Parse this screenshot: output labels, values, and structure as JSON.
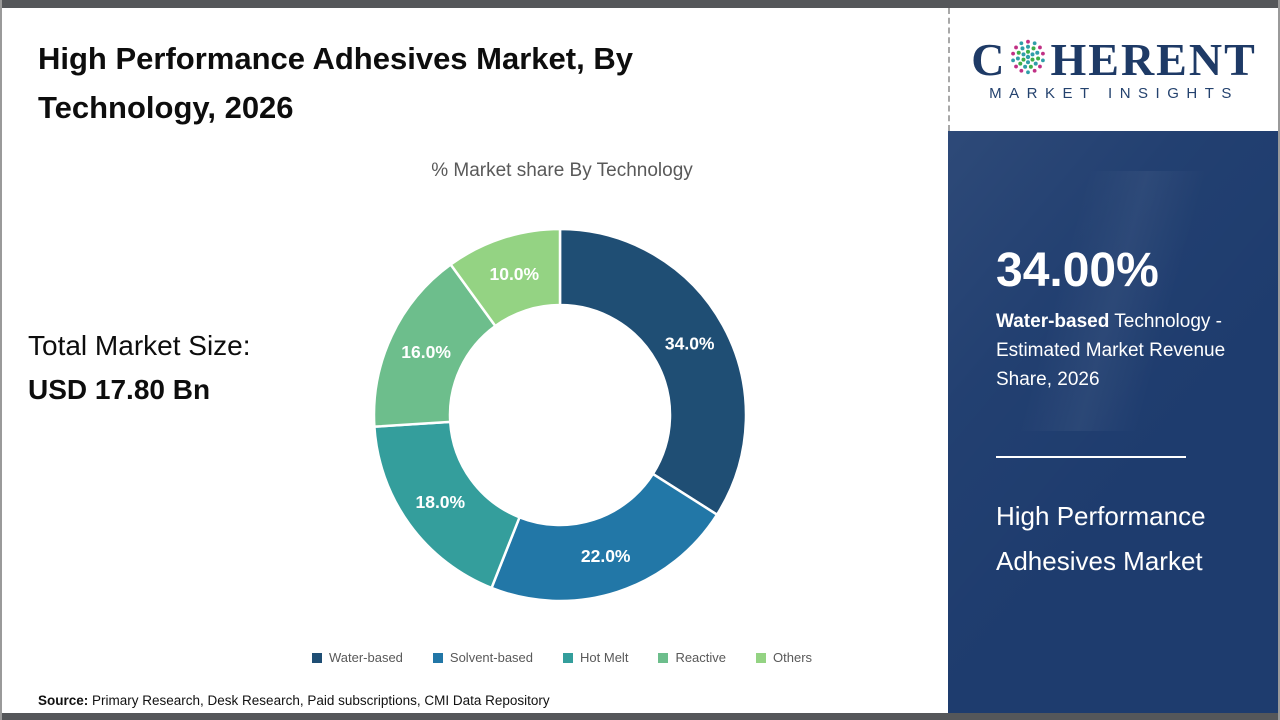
{
  "title": "High Performance Adhesives Market, By Technology, 2026",
  "chart_data": {
    "type": "pie",
    "donut": true,
    "title": "% Market share By Technology",
    "categories": [
      "Water-based",
      "Solvent-based",
      "Hot Melt",
      "Reactive",
      "Others"
    ],
    "values": [
      34.0,
      22.0,
      18.0,
      16.0,
      10.0
    ],
    "labels": [
      "34.0%",
      "22.0%",
      "18.0%",
      "16.0%",
      "10.0%"
    ],
    "colors": [
      "#1f4e74",
      "#2277a7",
      "#349e9c",
      "#6dbe8c",
      "#94d383"
    ],
    "start_angle_deg": 0,
    "direction": "clockwise",
    "legend_position": "bottom",
    "label_color": "#ffffff"
  },
  "total_market": {
    "label": "Total Market Size:",
    "value": "USD 17.80 Bn"
  },
  "sidebar": {
    "logo": {
      "first_letter": "C",
      "rest": "HERENT",
      "tagline": "MARKET INSIGHTS"
    },
    "stat_value": "34.00%",
    "stat_bold": "Water-based",
    "stat_text": " Technology - Estimated Market Revenue Share, 2026",
    "panel_title": "High Performance Adhesives Market"
  },
  "footer": {
    "source_label": "Source:",
    "source_text": " Primary Research, Desk Research, Paid subscriptions, CMI Data Repository"
  }
}
